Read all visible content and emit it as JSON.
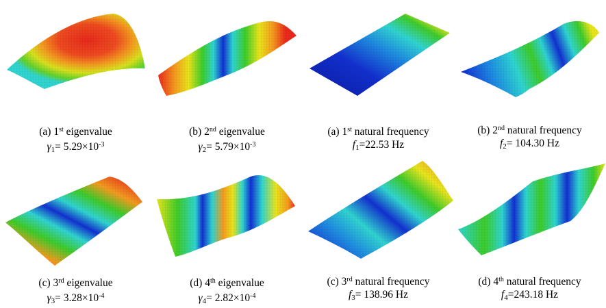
{
  "figure": {
    "panels": [
      {
        "id": "buckling-1",
        "line1_prefix": "(a) 1",
        "line1_sup": "st",
        "line1_suffix": " eigenvalue",
        "symbol": "γ",
        "sub": "1",
        "value_prefix": "= 5.29×10",
        "value_sup": "-3"
      },
      {
        "id": "buckling-2",
        "line1_prefix": "(b) 2",
        "line1_sup": "nd",
        "line1_suffix": " eigenvalue",
        "symbol": "γ",
        "sub": "2",
        "value_prefix": "= 5.79×10",
        "value_sup": "-3"
      },
      {
        "id": "freq-1",
        "line1_prefix": "(a) 1",
        "line1_sup": "st",
        "line1_suffix": " natural frequency",
        "symbol": "f",
        "sub": "1",
        "value_prefix": "=22.53 Hz",
        "value_sup": ""
      },
      {
        "id": "freq-2",
        "line1_prefix": "(b) 2",
        "line1_sup": "nd",
        "line1_suffix": " natural frequency",
        "symbol": "f",
        "sub": "2",
        "value_prefix": "= 104.30 Hz",
        "value_sup": ""
      },
      {
        "id": "buckling-3",
        "line1_prefix": "(c) 3",
        "line1_sup": "rd",
        "line1_suffix": " eigenvalue",
        "symbol": "γ",
        "sub": "3",
        "value_prefix": "= 3.28×10",
        "value_sup": "-4"
      },
      {
        "id": "buckling-4",
        "line1_prefix": "(d) 4",
        "line1_sup": "th",
        "line1_suffix": " eigenvalue",
        "symbol": "γ",
        "sub": "4",
        "value_prefix": "= 2.82×10",
        "value_sup": "-4"
      },
      {
        "id": "freq-3",
        "line1_prefix": "(c) 3",
        "line1_sup": "rd",
        "line1_suffix": " natural frequency",
        "symbol": "f",
        "sub": "3",
        "value_prefix": "= 138.96 Hz",
        "value_sup": ""
      },
      {
        "id": "freq-4",
        "line1_prefix": "(d) 4",
        "line1_sup": "th",
        "line1_suffix": " natural frequency",
        "symbol": "f",
        "sub": "4",
        "value_prefix": "=243.18 Hz",
        "value_sup": ""
      }
    ]
  },
  "colors": {
    "red": "#e8291c",
    "orange": "#f39a1e",
    "yellow": "#e7e41c",
    "green": "#3ecb2a",
    "cyan": "#2fd4d0",
    "blue": "#1230d0",
    "darkblue": "#0a1aa0",
    "mesh": "#000000"
  }
}
